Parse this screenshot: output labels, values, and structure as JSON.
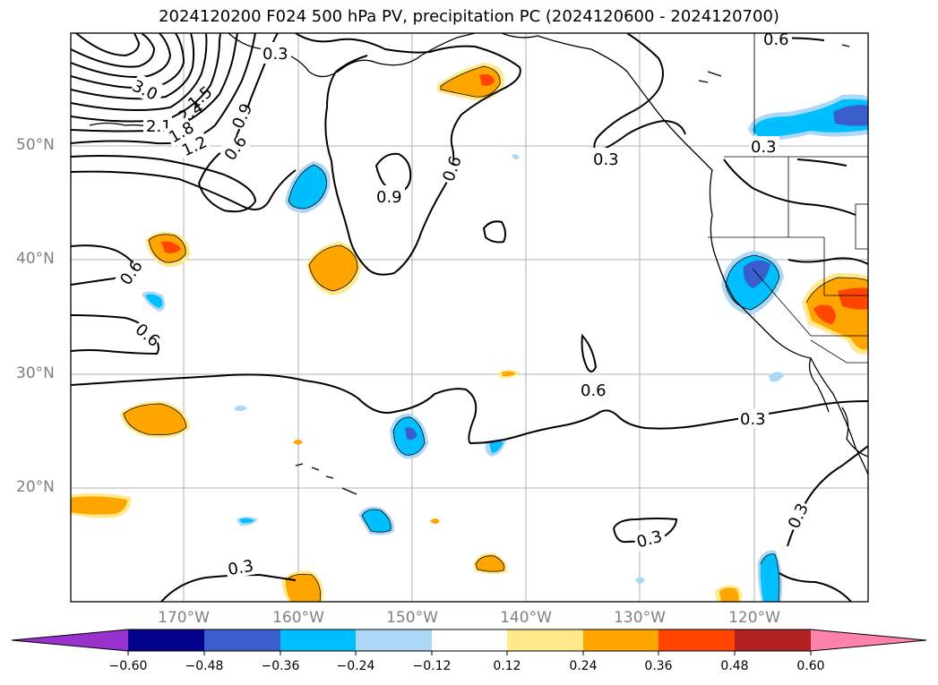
{
  "title": "2024120200 F024 500 hPa PV, precipitation PC (2024120600 - 2024120700)",
  "lat_ticks": [
    "50°N",
    "40°N",
    "30°N",
    "20°N"
  ],
  "lon_ticks": [
    "170°W",
    "160°W",
    "150°W",
    "140°W",
    "130°W",
    "120°W"
  ],
  "contour_labels": [
    "0.3",
    "3.0",
    "2.1",
    "2.4",
    "1.8",
    "1.5",
    "1.2",
    "0.9",
    "0.6",
    "0.6",
    "0.9",
    "0.6",
    "0.3",
    "0.6",
    "0.3",
    "0.6",
    "0.6",
    "0.3",
    "0.3",
    "0.3",
    "0.3",
    "0.3"
  ],
  "colorbar": {
    "ticks": [
      "−0.60",
      "−0.48",
      "−0.36",
      "−0.24",
      "−0.12",
      "0.12",
      "0.24",
      "0.36",
      "0.48",
      "0.60"
    ],
    "colors": [
      "#9932cc",
      "#00008b",
      "#3a5fcd",
      "#00bfff",
      "#add8f5",
      "#ffffff",
      "#ffe98a",
      "#ffa500",
      "#ff4500",
      "#b22222",
      "#ff82ab"
    ]
  }
}
